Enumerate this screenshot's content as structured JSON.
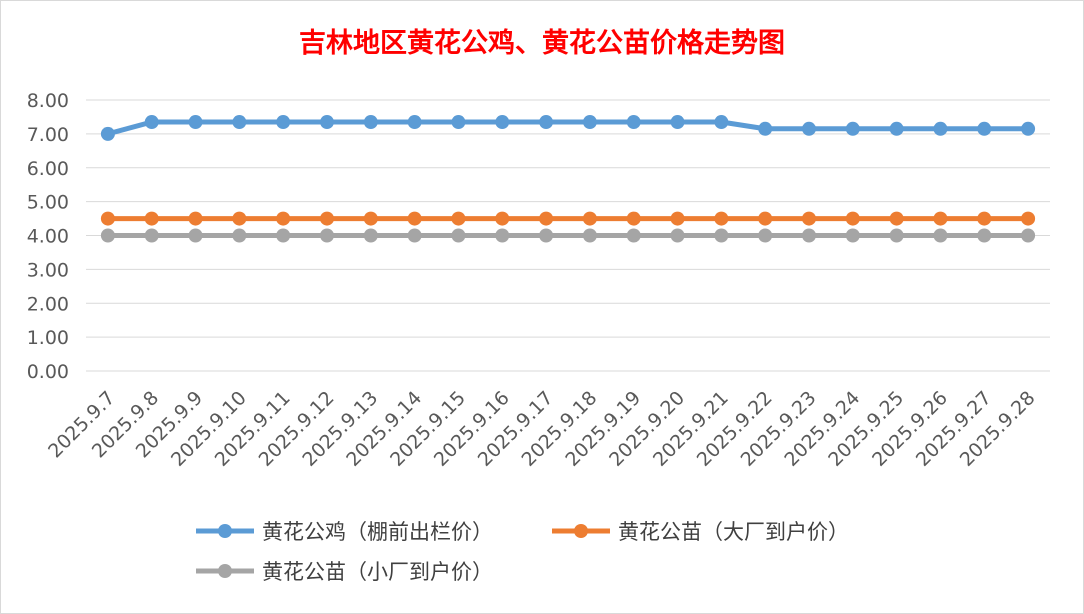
{
  "chart_data": {
    "type": "line",
    "title": "吉林地区黄花公鸡、黄花公苗价格走势图",
    "title_color": "#ff0000",
    "xlabel": "",
    "ylabel": "",
    "ylim": [
      0,
      8
    ],
    "y_ticks": [
      "0.00",
      "1.00",
      "2.00",
      "3.00",
      "4.00",
      "5.00",
      "6.00",
      "7.00",
      "8.00"
    ],
    "grid": true,
    "legend_position": "bottom",
    "categories": [
      "2025.9.7",
      "2025.9.8",
      "2025.9.9",
      "2025.9.10",
      "2025.9.11",
      "2025.9.12",
      "2025.9.13",
      "2025.9.14",
      "2025.9.15",
      "2025.9.16",
      "2025.9.17",
      "2025.9.18",
      "2025.9.19",
      "2025.9.20",
      "2025.9.21",
      "2025.9.22",
      "2025.9.23",
      "2025.9.24",
      "2025.9.25",
      "2025.9.26",
      "2025.9.27",
      "2025.9.28"
    ],
    "series": [
      {
        "name": "黄花公鸡（棚前出栏价）",
        "color": "#5b9bd5",
        "values": [
          7.0,
          7.35,
          7.35,
          7.35,
          7.35,
          7.35,
          7.35,
          7.35,
          7.35,
          7.35,
          7.35,
          7.35,
          7.35,
          7.35,
          7.35,
          7.15,
          7.15,
          7.15,
          7.15,
          7.15,
          7.15,
          7.15
        ]
      },
      {
        "name": "黄花公苗（大厂到户价）",
        "color": "#ed7d31",
        "values": [
          4.5,
          4.5,
          4.5,
          4.5,
          4.5,
          4.5,
          4.5,
          4.5,
          4.5,
          4.5,
          4.5,
          4.5,
          4.5,
          4.5,
          4.5,
          4.5,
          4.5,
          4.5,
          4.5,
          4.5,
          4.5,
          4.5
        ]
      },
      {
        "name": "黄花公苗（小厂到户价）",
        "color": "#a5a5a5",
        "values": [
          4.0,
          4.0,
          4.0,
          4.0,
          4.0,
          4.0,
          4.0,
          4.0,
          4.0,
          4.0,
          4.0,
          4.0,
          4.0,
          4.0,
          4.0,
          4.0,
          4.0,
          4.0,
          4.0,
          4.0,
          4.0,
          4.0
        ]
      }
    ]
  }
}
